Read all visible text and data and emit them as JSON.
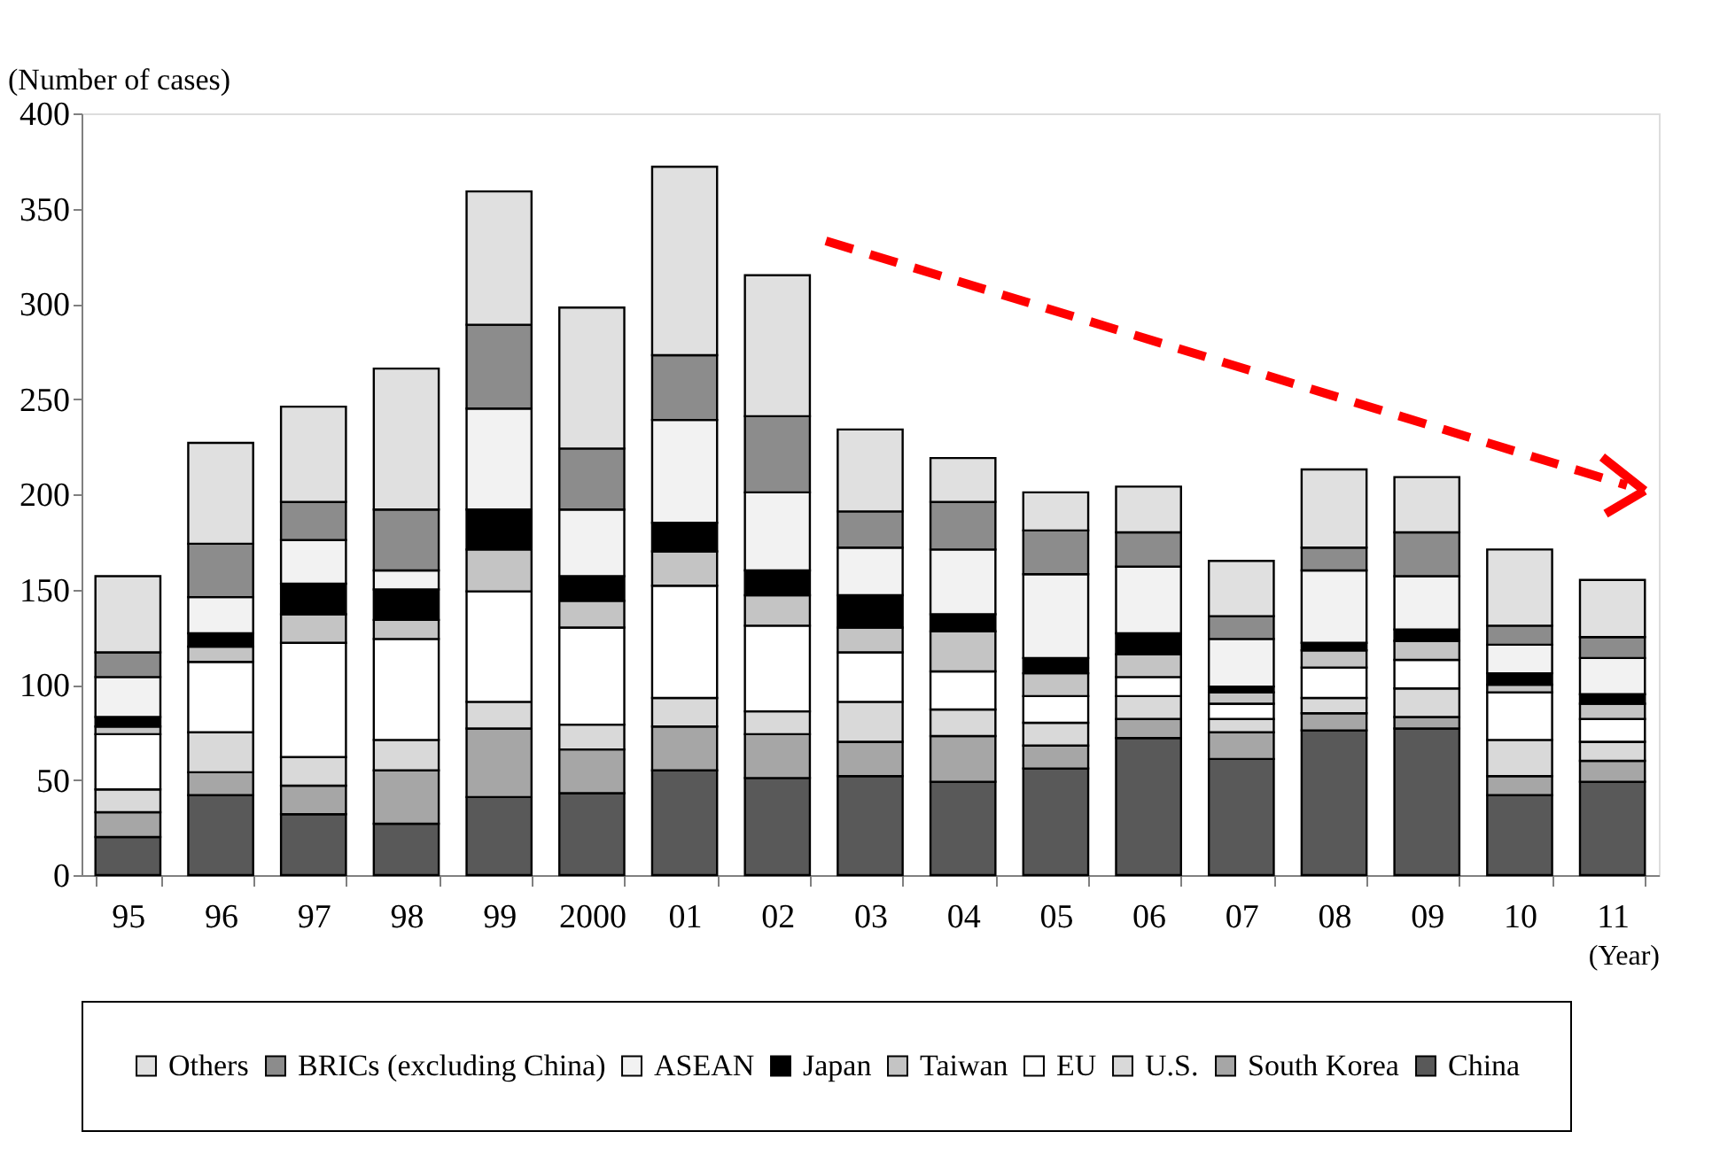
{
  "chart_data": {
    "type": "bar",
    "stacked": true,
    "xlabel": "(Year)",
    "ylabel": "(Number of cases)",
    "categories": [
      "95",
      "96",
      "97",
      "98",
      "99",
      "2000",
      "01",
      "02",
      "03",
      "04",
      "05",
      "06",
      "07",
      "08",
      "09",
      "10",
      "11"
    ],
    "ylim": [
      0,
      400
    ],
    "yticks": [
      0,
      50,
      100,
      150,
      200,
      250,
      300,
      350,
      400
    ],
    "grid": false,
    "legend": "bottom",
    "series": [
      {
        "name": "China",
        "color": "#595959",
        "values": [
          20,
          42,
          32,
          27,
          41,
          43,
          55,
          51,
          52,
          49,
          56,
          72,
          61,
          76,
          77,
          42,
          49
        ]
      },
      {
        "name": "South Korea",
        "color": "#a6a6a6",
        "values": [
          13,
          12,
          15,
          28,
          36,
          23,
          23,
          23,
          18,
          24,
          12,
          10,
          14,
          9,
          6,
          10,
          11
        ]
      },
      {
        "name": "U.S.",
        "color": "#d9d9d9",
        "values": [
          12,
          21,
          15,
          16,
          14,
          13,
          15,
          12,
          21,
          14,
          12,
          12,
          7,
          8,
          15,
          19,
          10
        ]
      },
      {
        "name": "EU",
        "color": "#ffffff",
        "values": [
          29,
          37,
          60,
          53,
          58,
          51,
          59,
          45,
          26,
          20,
          14,
          10,
          8,
          16,
          15,
          25,
          12
        ]
      },
      {
        "name": "Taiwan",
        "color": "#c4c4c4",
        "values": [
          4,
          8,
          15,
          10,
          22,
          14,
          18,
          16,
          13,
          21,
          12,
          12,
          6,
          9,
          10,
          4,
          8
        ]
      },
      {
        "name": "Japan",
        "color": "#000000",
        "values": [
          5,
          7,
          16,
          16,
          21,
          13,
          15,
          13,
          17,
          9,
          8,
          11,
          3,
          4,
          6,
          6,
          5
        ]
      },
      {
        "name": "ASEAN",
        "color": "#f2f2f2",
        "values": [
          21,
          19,
          23,
          10,
          53,
          35,
          54,
          41,
          25,
          34,
          44,
          35,
          25,
          38,
          28,
          15,
          19
        ]
      },
      {
        "name": "BRICs (excluding China)",
        "color": "#8c8c8c",
        "values": [
          13,
          28,
          20,
          32,
          44,
          32,
          34,
          40,
          19,
          25,
          23,
          18,
          12,
          12,
          23,
          10,
          11
        ]
      },
      {
        "name": "Others",
        "color": "#e0e0e0",
        "values": [
          40,
          53,
          50,
          74,
          70,
          74,
          99,
          74,
          43,
          23,
          20,
          24,
          29,
          41,
          29,
          40,
          30
        ]
      }
    ]
  }
}
